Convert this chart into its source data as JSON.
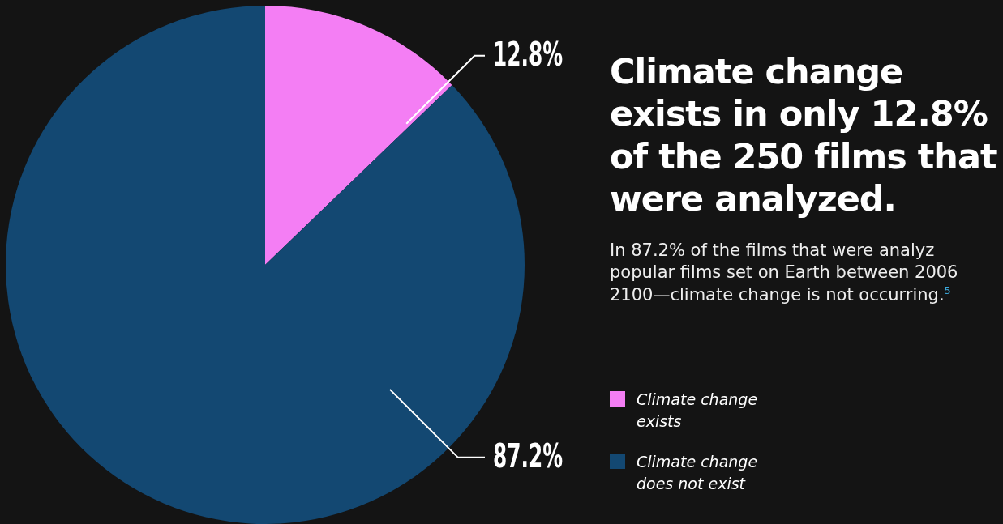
{
  "chart_data": {
    "type": "pie",
    "title": "Climate change exists in only 12.8% of the 250 films that were analyzed.",
    "subtitle": "In 87.2% of the films that were analyz popular films set on Earth between 2006 2100—climate change is not occurring.$^{5}$",
    "categories": [
      "Climate change exists",
      "Climate change does not exist"
    ],
    "values": [
      12.8,
      87.2
    ],
    "colors": [
      "#f47ef4",
      "#134872"
    ],
    "value_labels": [
      "12.8%",
      "87.2%"
    ],
    "legend": "right"
  }
}
